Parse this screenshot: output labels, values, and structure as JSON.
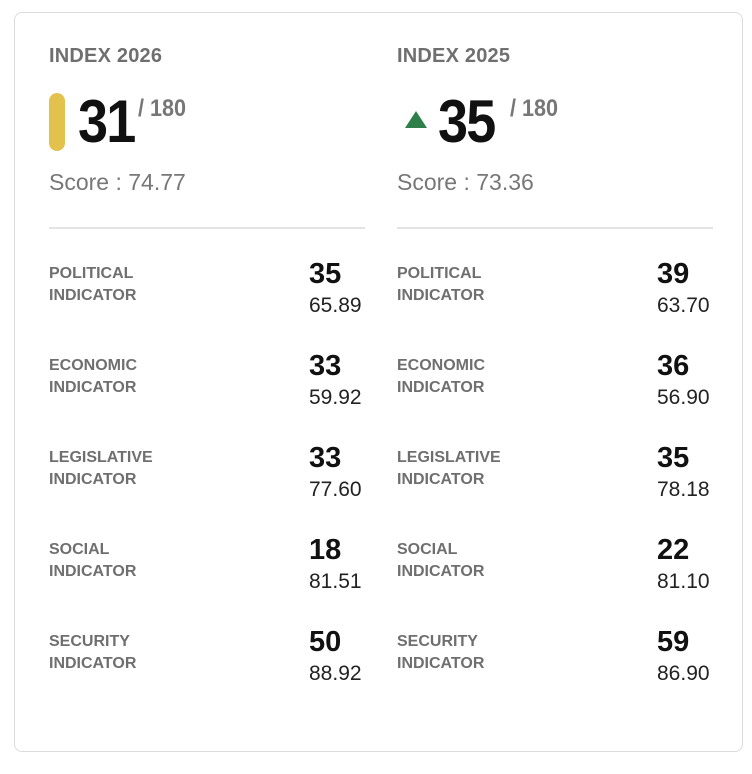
{
  "columns": [
    {
      "title": "INDEX 2026",
      "rank": "31",
      "rank_total": "/ 180",
      "rank_marker": "yellow-bar",
      "marker_color": "#e2c24c",
      "score": "Score : 74.77",
      "indicators": [
        {
          "label_line1": "POLITICAL",
          "label_line2": "INDICATOR",
          "rank": "35",
          "score": "65.89"
        },
        {
          "label_line1": "ECONOMIC",
          "label_line2": "INDICATOR",
          "rank": "33",
          "score": "59.92"
        },
        {
          "label_line1": "LEGISLATIVE",
          "label_line2": "INDICATOR",
          "rank": "33",
          "score": "77.60"
        },
        {
          "label_line1": "SOCIAL",
          "label_line2": "INDICATOR",
          "rank": "18",
          "score": "81.51"
        },
        {
          "label_line1": "SECURITY",
          "label_line2": "INDICATOR",
          "rank": "50",
          "score": "88.92"
        }
      ]
    },
    {
      "title": "INDEX 2025",
      "rank": "35",
      "rank_total": "/ 180",
      "rank_marker": "up-arrow-icon",
      "marker_color": "#2f7f4a",
      "score": "Score : 73.36",
      "indicators": [
        {
          "label_line1": "POLITICAL",
          "label_line2": "INDICATOR",
          "rank": "39",
          "score": "63.70"
        },
        {
          "label_line1": "ECONOMIC",
          "label_line2": "INDICATOR",
          "rank": "36",
          "score": "56.90"
        },
        {
          "label_line1": "LEGISLATIVE",
          "label_line2": "INDICATOR",
          "rank": "35",
          "score": "78.18"
        },
        {
          "label_line1": "SOCIAL",
          "label_line2": "INDICATOR",
          "rank": "22",
          "score": "81.10"
        },
        {
          "label_line1": "SECURITY",
          "label_line2": "INDICATOR",
          "rank": "59",
          "score": "86.90"
        }
      ]
    }
  ]
}
